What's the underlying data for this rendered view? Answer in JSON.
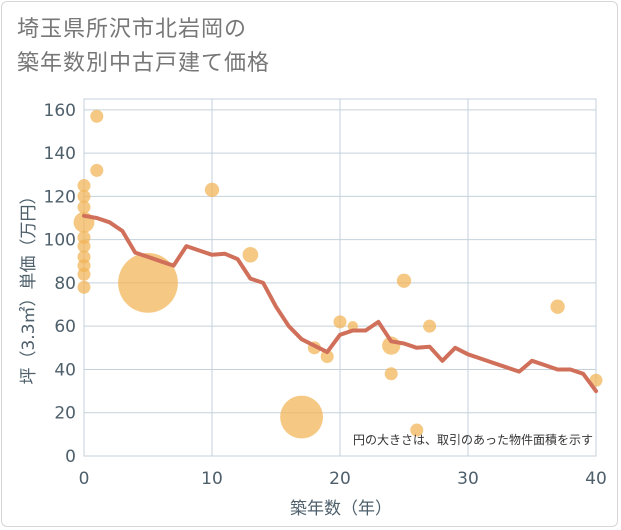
{
  "title_line1": "埼玉県所沢市北岩岡の",
  "title_line2": "築年数別中古戸建て価格",
  "chart_data": {
    "type": "scatter",
    "xlabel": "築年数（年）",
    "ylabel": "坪（3.3㎡）単価（万円）",
    "note": "円の大きさは、取引のあった物件面積を示す",
    "xlim": [
      0,
      40
    ],
    "ylim": [
      0,
      165
    ],
    "xticks": [
      0,
      10,
      20,
      30,
      40
    ],
    "yticks": [
      0,
      20,
      40,
      60,
      80,
      100,
      120,
      140,
      160
    ],
    "grid": true,
    "colors": {
      "bubble": "#f2b55a",
      "line": "#d1705a",
      "grid": "#c5d2dc"
    },
    "scatter": [
      {
        "x": 0,
        "y": 125,
        "s": 1
      },
      {
        "x": 0,
        "y": 120,
        "s": 1
      },
      {
        "x": 0,
        "y": 115,
        "s": 1
      },
      {
        "x": 0,
        "y": 108,
        "s": 1.6
      },
      {
        "x": 0,
        "y": 101,
        "s": 1
      },
      {
        "x": 0,
        "y": 97,
        "s": 1
      },
      {
        "x": 0,
        "y": 92,
        "s": 1
      },
      {
        "x": 0,
        "y": 88,
        "s": 1
      },
      {
        "x": 0,
        "y": 84,
        "s": 1
      },
      {
        "x": 0,
        "y": 78,
        "s": 1
      },
      {
        "x": 1,
        "y": 157,
        "s": 1
      },
      {
        "x": 1,
        "y": 132,
        "s": 1
      },
      {
        "x": 5,
        "y": 80,
        "s": 4.6
      },
      {
        "x": 10,
        "y": 123,
        "s": 1.1
      },
      {
        "x": 13,
        "y": 93,
        "s": 1.2
      },
      {
        "x": 17,
        "y": 18,
        "s": 3.3
      },
      {
        "x": 18,
        "y": 50,
        "s": 1
      },
      {
        "x": 19,
        "y": 46,
        "s": 1
      },
      {
        "x": 20,
        "y": 62,
        "s": 1
      },
      {
        "x": 21,
        "y": 60,
        "s": 0.8
      },
      {
        "x": 24,
        "y": 51,
        "s": 1.4
      },
      {
        "x": 24,
        "y": 38,
        "s": 1
      },
      {
        "x": 25,
        "y": 81,
        "s": 1.1
      },
      {
        "x": 26,
        "y": 12,
        "s": 1
      },
      {
        "x": 27,
        "y": 60,
        "s": 1
      },
      {
        "x": 37,
        "y": 69,
        "s": 1.1
      },
      {
        "x": 40,
        "y": 35,
        "s": 1
      }
    ],
    "series": [
      {
        "values": [
          [
            0,
            111
          ],
          [
            1,
            110
          ],
          [
            2,
            108
          ],
          [
            3,
            104
          ],
          [
            4,
            94
          ],
          [
            5,
            92
          ],
          [
            6,
            90
          ],
          [
            7,
            88
          ],
          [
            8,
            97
          ],
          [
            9,
            95
          ],
          [
            10,
            93
          ],
          [
            11,
            93.5
          ],
          [
            12,
            91
          ],
          [
            13,
            82
          ],
          [
            14,
            80
          ],
          [
            15,
            69
          ],
          [
            16,
            60
          ],
          [
            17,
            54
          ],
          [
            18,
            51
          ],
          [
            19,
            48
          ],
          [
            20,
            56
          ],
          [
            21,
            58
          ],
          [
            22,
            58
          ],
          [
            23,
            62
          ],
          [
            24,
            53
          ],
          [
            25,
            52
          ],
          [
            26,
            50
          ],
          [
            27,
            50.5
          ],
          [
            28,
            44
          ],
          [
            29,
            50
          ],
          [
            30,
            47
          ],
          [
            31,
            45
          ],
          [
            32,
            43
          ],
          [
            33,
            41
          ],
          [
            34,
            39
          ],
          [
            35,
            44
          ],
          [
            36,
            42
          ],
          [
            37,
            40
          ],
          [
            38,
            40
          ],
          [
            39,
            38
          ],
          [
            40,
            30
          ]
        ]
      }
    ]
  }
}
